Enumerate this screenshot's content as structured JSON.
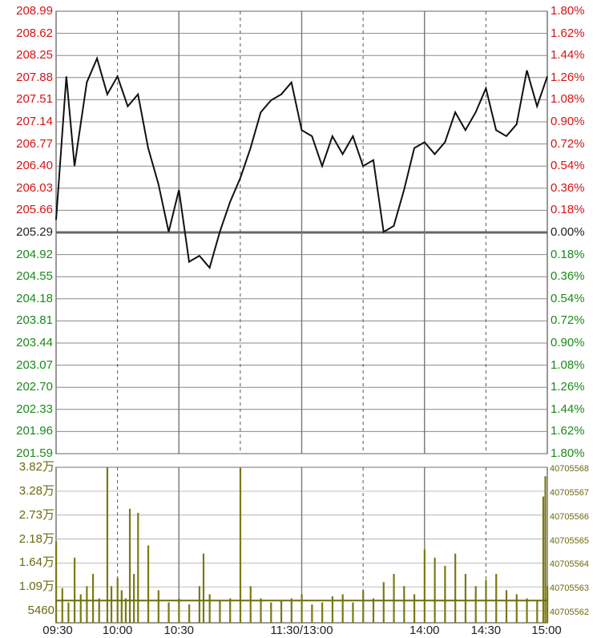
{
  "chart_data": [
    {
      "type": "line",
      "price_axis_left": [
        "208.99",
        "208.62",
        "208.25",
        "207.88",
        "207.51",
        "207.14",
        "206.77",
        "206.40",
        "206.03",
        "205.66",
        "205.29",
        "204.92",
        "204.55",
        "204.18",
        "203.81",
        "203.44",
        "203.07",
        "202.70",
        "202.33",
        "201.96",
        "201.59"
      ],
      "pct_axis_right": [
        "1.80%",
        "1.62%",
        "1.44%",
        "1.26%",
        "1.08%",
        "0.90%",
        "0.72%",
        "0.54%",
        "0.36%",
        "0.18%",
        "0.00%",
        "0.18%",
        "0.36%",
        "0.54%",
        "0.72%",
        "0.90%",
        "1.08%",
        "1.26%",
        "1.44%",
        "1.62%",
        "1.80%"
      ],
      "prev_close": 205.29,
      "ylim": [
        201.59,
        208.99
      ],
      "x_ticks": [
        "09:30",
        "10:00",
        "10:30",
        "11:30/13:00",
        "14:00",
        "14:30",
        "15:00"
      ],
      "x_minutes": [
        0,
        5,
        9,
        15,
        20,
        25,
        30,
        35,
        40,
        45,
        50,
        55,
        60,
        65,
        70,
        75,
        80,
        85,
        90,
        95,
        100,
        105,
        110,
        115,
        120,
        125,
        130,
        135,
        140,
        145,
        150,
        155,
        160,
        165,
        170,
        175,
        180,
        185,
        190,
        195,
        200,
        205,
        210,
        215,
        220,
        225,
        230,
        235,
        240
      ],
      "series": [
        {
          "values": [
            205.5,
            207.9,
            206.4,
            207.8,
            208.2,
            207.6,
            207.9,
            207.4,
            207.6,
            206.7,
            206.1,
            205.3,
            206.0,
            204.8,
            204.9,
            204.7,
            205.3,
            205.8,
            206.2,
            206.7,
            207.3,
            207.5,
            207.6,
            207.8,
            207.0,
            206.9,
            206.4,
            206.9,
            206.6,
            206.9,
            206.4,
            206.5,
            205.3,
            205.4,
            206.0,
            206.7,
            206.8,
            206.6,
            206.8,
            207.3,
            207.0,
            207.3,
            207.7,
            207.0,
            206.9,
            207.1,
            208.0,
            207.4,
            207.9
          ]
        }
      ]
    },
    {
      "type": "bar",
      "vol_axis_left": [
        "3.82万",
        "3.28万",
        "2.73万",
        "2.18万",
        "1.64万",
        "1.09万",
        "5460"
      ],
      "vol_axis_right": [
        "40705568",
        "40705567",
        "40705566",
        "40705565",
        "40705564",
        "40705563",
        "40705562"
      ],
      "ylim": [
        0,
        38200
      ],
      "x_minutes": [
        0,
        3,
        6,
        9,
        12,
        15,
        18,
        21,
        25,
        27,
        30,
        32,
        34,
        36,
        38,
        40,
        45,
        50,
        55,
        60,
        65,
        70,
        72,
        75,
        80,
        85,
        90,
        95,
        100,
        105,
        110,
        115,
        120,
        125,
        130,
        135,
        140,
        145,
        150,
        155,
        160,
        165,
        170,
        175,
        180,
        185,
        190,
        195,
        200,
        205,
        210,
        215,
        220,
        225,
        230,
        235,
        238,
        239,
        240
      ],
      "values": [
        20000,
        8500,
        5000,
        16000,
        7000,
        9000,
        12000,
        6000,
        38200,
        9000,
        11000,
        8000,
        6000,
        28000,
        12000,
        27000,
        19000,
        8000,
        5000,
        6000,
        4500,
        9000,
        17000,
        7000,
        5500,
        6000,
        38000,
        9000,
        6000,
        5000,
        5500,
        6000,
        7000,
        4500,
        5000,
        6500,
        7000,
        5000,
        8000,
        6000,
        10000,
        12000,
        9000,
        7000,
        18000,
        16000,
        14000,
        17000,
        12000,
        9000,
        10500,
        12000,
        8000,
        7000,
        6000,
        5500,
        31000,
        36000,
        9000
      ]
    }
  ]
}
